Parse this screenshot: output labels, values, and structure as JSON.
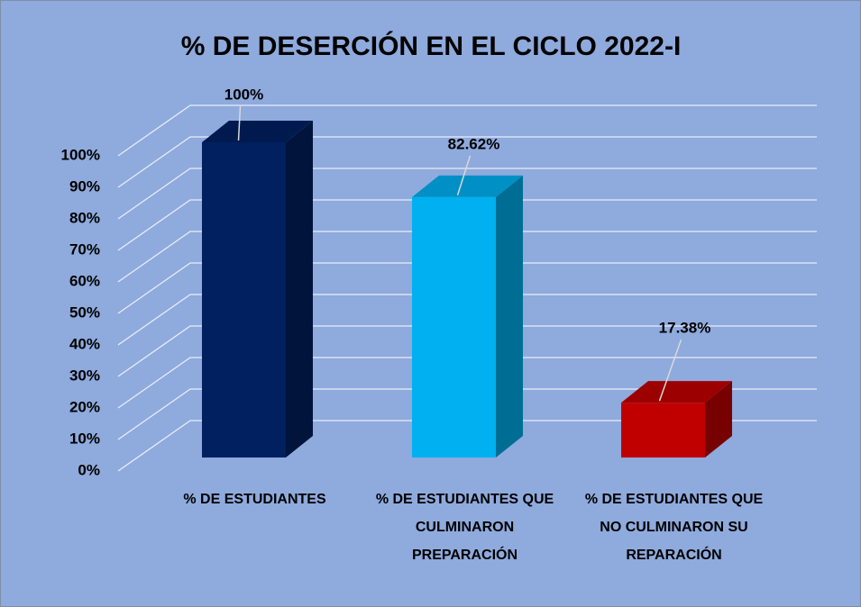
{
  "chart_data": {
    "type": "bar",
    "title": "% DE DESERCIÓN EN EL CICLO 2022-I",
    "categories": [
      "% DE ESTUDIANTES",
      "% DE ESTUDIANTES QUE CULMINARON PREPARACIÓN",
      "% DE ESTUDIANTES QUE NO CULMINARON SU REPARACIÓN"
    ],
    "values": [
      100,
      82.62,
      17.38
    ],
    "value_labels": [
      "100%",
      "82.62%",
      "17.38%"
    ],
    "colors": [
      "#002060",
      "#00b0f0",
      "#c00000"
    ],
    "ylim": [
      0,
      100
    ],
    "yticks": [
      {
        "value": 0,
        "label": "0%"
      },
      {
        "value": 10,
        "label": "10%"
      },
      {
        "value": 20,
        "label": "20%"
      },
      {
        "value": 30,
        "label": "30%"
      },
      {
        "value": 40,
        "label": "40%"
      },
      {
        "value": 50,
        "label": "50%"
      },
      {
        "value": 60,
        "label": "60%"
      },
      {
        "value": 70,
        "label": "70%"
      },
      {
        "value": 80,
        "label": "80%"
      },
      {
        "value": 90,
        "label": "90%"
      },
      {
        "value": 100,
        "label": "100%"
      }
    ],
    "grid": true
  }
}
